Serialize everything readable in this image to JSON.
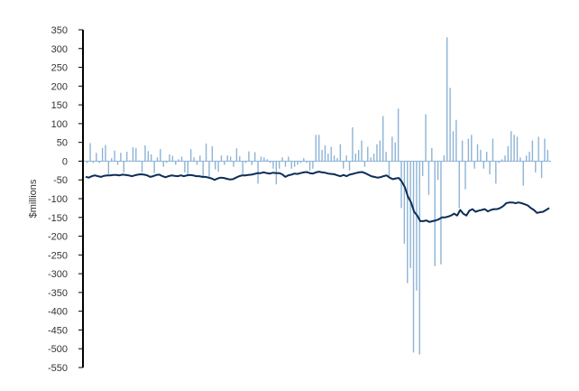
{
  "chart_data": {
    "type": "bar+line",
    "title": "",
    "xlabel": "",
    "ylabel": "$millions",
    "ylim": [
      -550,
      350
    ],
    "yticks": [
      350,
      300,
      250,
      200,
      150,
      100,
      50,
      0,
      -50,
      -100,
      -150,
      -200,
      -250,
      -300,
      -350,
      -400,
      -450,
      -500,
      -550
    ],
    "grid": false,
    "legend": "none",
    "colors": {
      "bars": "#8db3d6",
      "line": "#0c2d57",
      "axis": "#000000"
    },
    "series": [
      {
        "type": "bar",
        "values": [
          -5,
          48,
          -5,
          22,
          -5,
          35,
          43,
          -35,
          8,
          28,
          -10,
          22,
          -30,
          25,
          2,
          37,
          35,
          2,
          -30,
          42,
          27,
          18,
          -32,
          10,
          32,
          -15,
          -5,
          18,
          14,
          -10,
          5,
          12,
          -30,
          -35,
          32,
          10,
          -10,
          15,
          -45,
          47,
          -45,
          40,
          -22,
          -28,
          15,
          -10,
          15,
          12,
          -15,
          34,
          13,
          -35,
          -5,
          26,
          -10,
          24,
          -60,
          12,
          10,
          5,
          -5,
          -20,
          -62,
          -20,
          10,
          -15,
          12,
          -20,
          -15,
          -10,
          -5,
          8,
          -5,
          -25,
          -20,
          70,
          70,
          30,
          42,
          20,
          38,
          15,
          8,
          45,
          -20,
          15,
          -25,
          90,
          20,
          30,
          55,
          -15,
          38,
          10,
          20,
          45,
          55,
          120,
          25,
          -40,
          65,
          50,
          140,
          -125,
          -220,
          -325,
          -285,
          -510,
          -345,
          -515,
          -40,
          125,
          -90,
          35,
          -280,
          -50,
          -275,
          15,
          330,
          195,
          80,
          110,
          -125,
          55,
          -75,
          60,
          70,
          -20,
          45,
          30,
          -20,
          25,
          -35,
          60,
          -60,
          -5,
          5,
          15,
          40,
          80,
          70,
          65,
          10,
          -65,
          15,
          25,
          55,
          -30,
          65,
          -45,
          60,
          30
        ]
      },
      {
        "type": "line",
        "values": [
          -42,
          -44,
          -40,
          -38,
          -40,
          -42,
          -39,
          -38,
          -38,
          -37,
          -37,
          -38,
          -36,
          -37,
          -38,
          -40,
          -38,
          -36,
          -35,
          -36,
          -38,
          -42,
          -40,
          -37,
          -36,
          -40,
          -43,
          -40,
          -38,
          -39,
          -40,
          -38,
          -40,
          -38,
          -37,
          -38,
          -40,
          -40,
          -42,
          -42,
          -44,
          -46,
          -50,
          -46,
          -44,
          -45,
          -47,
          -49,
          -48,
          -44,
          -40,
          -38,
          -38,
          -37,
          -36,
          -34,
          -32,
          -32,
          -30,
          -32,
          -33,
          -31,
          -32,
          -32,
          -35,
          -42,
          -38,
          -36,
          -33,
          -34,
          -32,
          -30,
          -29,
          -32,
          -33,
          -30,
          -28,
          -30,
          -31,
          -33,
          -34,
          -35,
          -38,
          -40,
          -37,
          -40,
          -36,
          -34,
          -32,
          -30,
          -29,
          -32,
          -36,
          -40,
          -42,
          -44,
          -43,
          -40,
          -38,
          -44,
          -48,
          -46,
          -45,
          -55,
          -70,
          -95,
          -110,
          -135,
          -145,
          -160,
          -160,
          -158,
          -162,
          -160,
          -158,
          -155,
          -150,
          -150,
          -148,
          -145,
          -140,
          -145,
          -130,
          -140,
          -145,
          -132,
          -128,
          -135,
          -132,
          -130,
          -128,
          -134,
          -130,
          -128,
          -128,
          -125,
          -120,
          -112,
          -110,
          -110,
          -112,
          -110,
          -112,
          -115,
          -118,
          -125,
          -130,
          -138,
          -136,
          -135,
          -130,
          -125
        ]
      }
    ]
  }
}
